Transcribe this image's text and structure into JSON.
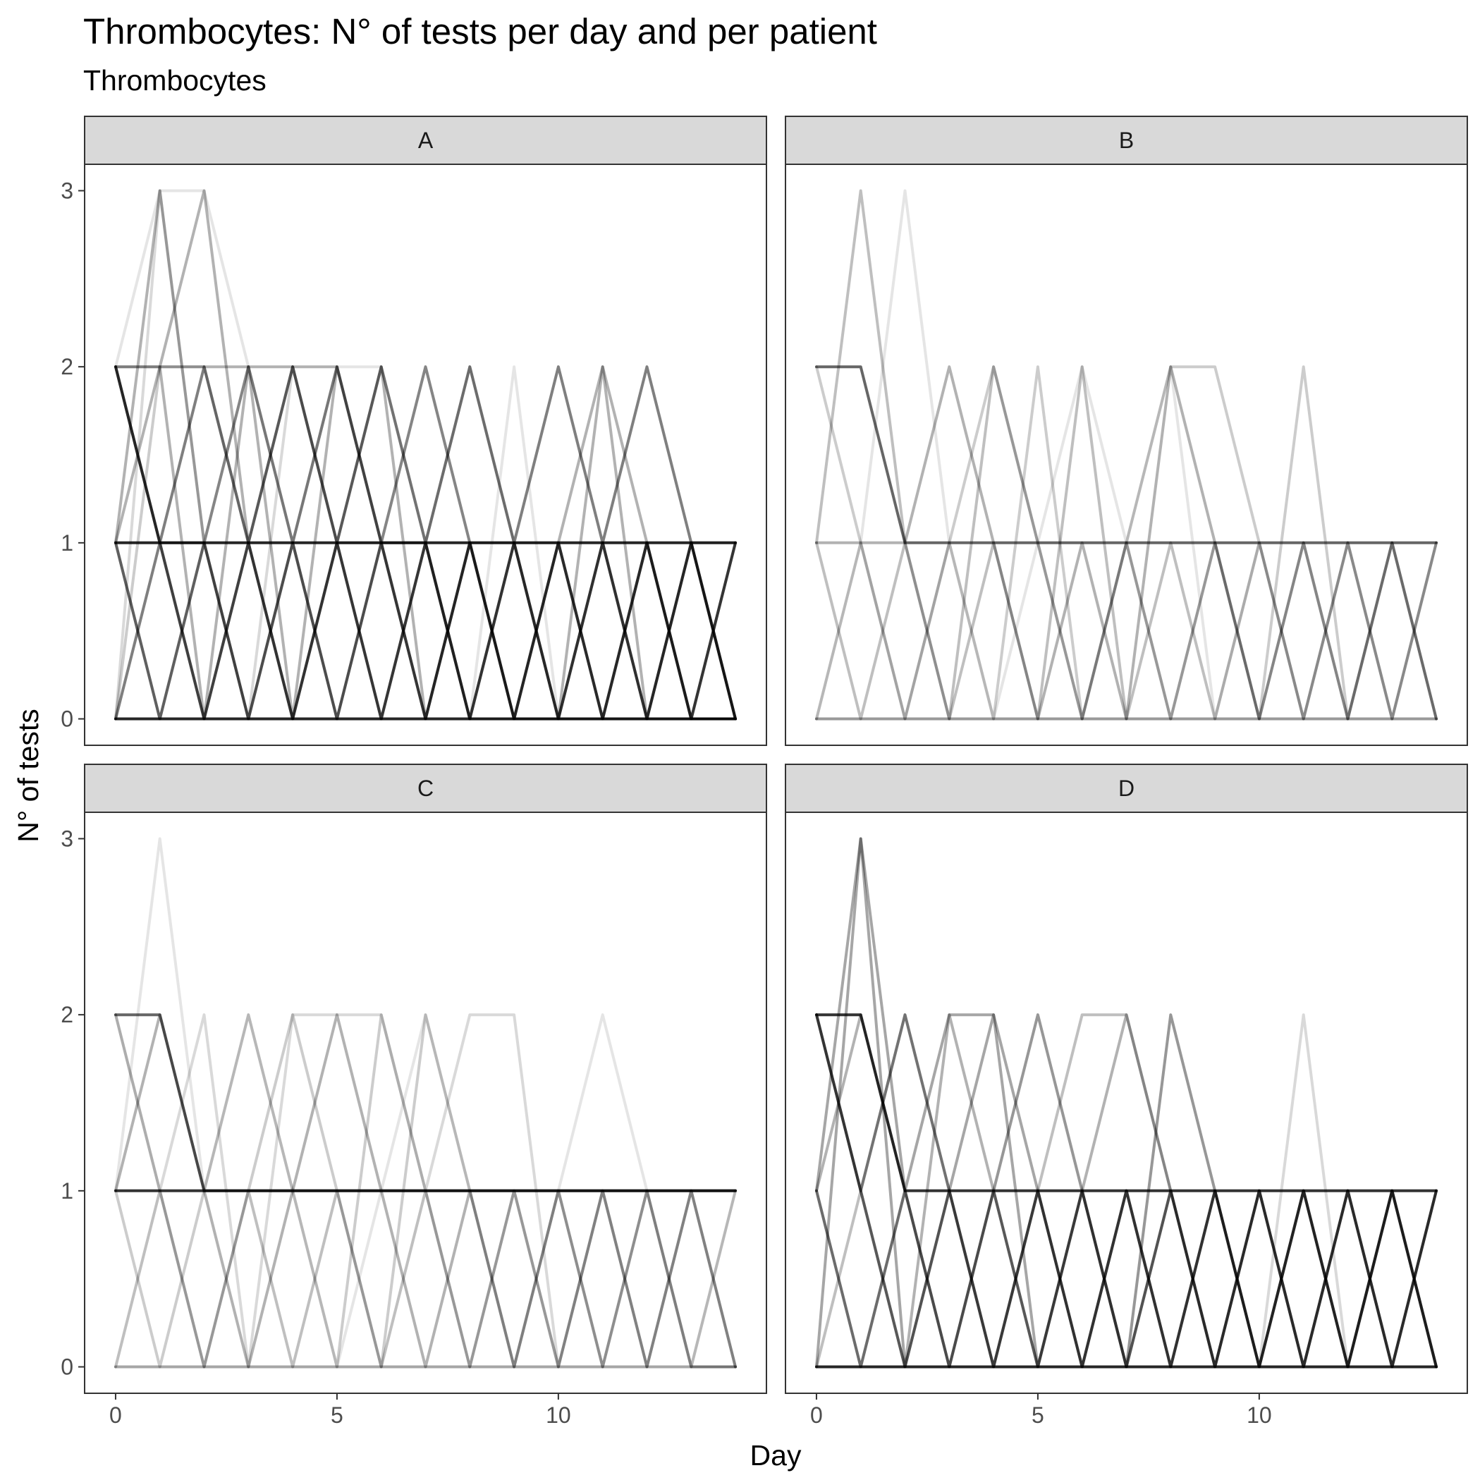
{
  "chart_data": {
    "type": "line",
    "title": "Thrombocytes: N° of tests per day and per patient",
    "subtitle": "Thrombocytes",
    "xlabel": "Day",
    "ylabel": "N° of tests",
    "xlim": [
      -0.7,
      14.7
    ],
    "ylim": [
      -0.15,
      3.15
    ],
    "xticks": [
      0,
      5,
      10
    ],
    "yticks": [
      0,
      1,
      2,
      3
    ],
    "grid": false,
    "facets": [
      {
        "label": "A",
        "series": [
          {
            "values": [
              2,
              1,
              2,
              1,
              2,
              1,
              2,
              1,
              2,
              1,
              2,
              1,
              2,
              1,
              0
            ],
            "opacity": 0.5
          },
          {
            "values": [
              2,
              2,
              2,
              2,
              2,
              2,
              1,
              1,
              0,
              0,
              0,
              0,
              0,
              0,
              0
            ],
            "opacity": 0.3
          },
          {
            "values": [
              1,
              1,
              1,
              1,
              1,
              1,
              1,
              1,
              1,
              1,
              1,
              1,
              1,
              1,
              1
            ],
            "opacity": 0.85
          },
          {
            "values": [
              0,
              0,
              0,
              0,
              0,
              0,
              0,
              0,
              0,
              0,
              0,
              0,
              0,
              0,
              0
            ],
            "opacity": 0.85
          },
          {
            "values": [
              2,
              1,
              0,
              1,
              0,
              1,
              0,
              1,
              0,
              1,
              0,
              1,
              0,
              1,
              0
            ],
            "opacity": 0.5
          },
          {
            "values": [
              1,
              0,
              1,
              0,
              1,
              0,
              1,
              0,
              1,
              0,
              1,
              0,
              1,
              0,
              1
            ],
            "opacity": 0.5
          },
          {
            "values": [
              0,
              1,
              0,
              1,
              0,
              1,
              0,
              1,
              0,
              1,
              0,
              1,
              0,
              1,
              0
            ],
            "opacity": 0.5
          },
          {
            "values": [
              1,
              3,
              1,
              2,
              1,
              2,
              1,
              2,
              1,
              0,
              1,
              0,
              1,
              0,
              1
            ],
            "opacity": 0.3
          },
          {
            "values": [
              1,
              2,
              3,
              1,
              2,
              1,
              2,
              0,
              1,
              0,
              1,
              2,
              1,
              0,
              0
            ],
            "opacity": 0.3
          },
          {
            "values": [
              0,
              3,
              1,
              0,
              2,
              1,
              0,
              1,
              2,
              1,
              0,
              1,
              0,
              1,
              1
            ],
            "opacity": 0.15
          },
          {
            "values": [
              2,
              1,
              1,
              0,
              1,
              0,
              1,
              0,
              1,
              0,
              1,
              0,
              1,
              0,
              1
            ],
            "opacity": 0.4
          },
          {
            "values": [
              2,
              3,
              3,
              2,
              1,
              2,
              2,
              1,
              0,
              2,
              0,
              1,
              0,
              0,
              0
            ],
            "opacity": 0.1
          },
          {
            "values": [
              1,
              0,
              1,
              2,
              1,
              2,
              1,
              2,
              1,
              1,
              0,
              0,
              1,
              0,
              0
            ],
            "opacity": 0.25
          },
          {
            "values": [
              2,
              2,
              0,
              2,
              0,
              2,
              1,
              0,
              1,
              0,
              0,
              2,
              0,
              1,
              0
            ],
            "opacity": 0.3
          },
          {
            "values": [
              0,
              2,
              2,
              1,
              0,
              1,
              1,
              1,
              0,
              1,
              1,
              0,
              0,
              0,
              0
            ],
            "opacity": 0.2
          }
        ]
      },
      {
        "label": "B",
        "series": [
          {
            "values": [
              2,
              2,
              1,
              1,
              1,
              1,
              1,
              1,
              1,
              1,
              1,
              1,
              1,
              1,
              1
            ],
            "opacity": 0.6
          },
          {
            "values": [
              0,
              0,
              0,
              0,
              0,
              0,
              0,
              0,
              0,
              0,
              0,
              0,
              0,
              0,
              0
            ],
            "opacity": 0.4
          },
          {
            "values": [
              1,
              3,
              1,
              0,
              2,
              1,
              0,
              1,
              0,
              1,
              0,
              1,
              0,
              1,
              0
            ],
            "opacity": 0.25
          },
          {
            "values": [
              0,
              1,
              3,
              1,
              0,
              1,
              2,
              1,
              2,
              0,
              1,
              0,
              1,
              0,
              1
            ],
            "opacity": 0.1
          },
          {
            "values": [
              1,
              1,
              1,
              2,
              1,
              0,
              1,
              0,
              2,
              1,
              0,
              1,
              0,
              1,
              0
            ],
            "opacity": 0.3
          },
          {
            "values": [
              0,
              1,
              0,
              1,
              2,
              1,
              0,
              1,
              2,
              2,
              1,
              0,
              1,
              0,
              1
            ],
            "opacity": 0.2
          },
          {
            "values": [
              2,
              1,
              0,
              1,
              0,
              2,
              0,
              1,
              0,
              1,
              0,
              2,
              0,
              1,
              0
            ],
            "opacity": 0.2
          },
          {
            "values": [
              1,
              0,
              1,
              0,
              1,
              0,
              2,
              0,
              1,
              0,
              1,
              0,
              1,
              0,
              1
            ],
            "opacity": 0.25
          }
        ]
      },
      {
        "label": "C",
        "series": [
          {
            "values": [
              2,
              2,
              1,
              1,
              1,
              1,
              1,
              1,
              1,
              1,
              1,
              1,
              1,
              1,
              1
            ],
            "opacity": 0.6
          },
          {
            "values": [
              1,
              2,
              1,
              0,
              1,
              2,
              1,
              0,
              1,
              0,
              1,
              0,
              1,
              0,
              0
            ],
            "opacity": 0.3
          },
          {
            "values": [
              1,
              1,
              1,
              1,
              1,
              1,
              1,
              1,
              1,
              1,
              1,
              1,
              1,
              1,
              1
            ],
            "opacity": 0.8
          },
          {
            "values": [
              0,
              0,
              0,
              0,
              0,
              0,
              0,
              0,
              0,
              0,
              0,
              0,
              0,
              0,
              0
            ],
            "opacity": 0.35
          },
          {
            "values": [
              1,
              3,
              1,
              2,
              1,
              0,
              1,
              2,
              1,
              0,
              1,
              2,
              1,
              0,
              1
            ],
            "opacity": 0.1
          },
          {
            "values": [
              2,
              1,
              2,
              0,
              2,
              2,
              2,
              1,
              2,
              2,
              0,
              1,
              0,
              1,
              0
            ],
            "opacity": 0.15
          },
          {
            "values": [
              0,
              1,
              0,
              1,
              0,
              1,
              0,
              1,
              0,
              1,
              0,
              1,
              0,
              1,
              0
            ],
            "opacity": 0.25
          },
          {
            "values": [
              1,
              0,
              1,
              2,
              1,
              0,
              2,
              1,
              0,
              1,
              0,
              1,
              0,
              1,
              0
            ],
            "opacity": 0.2
          },
          {
            "values": [
              2,
              1,
              0,
              1,
              2,
              1,
              0,
              2,
              1,
              0,
              1,
              0,
              1,
              0,
              1
            ],
            "opacity": 0.2
          }
        ]
      },
      {
        "label": "D",
        "series": [
          {
            "values": [
              2,
              2,
              1,
              1,
              1,
              1,
              1,
              1,
              1,
              1,
              1,
              1,
              1,
              1,
              1
            ],
            "opacity": 0.8
          },
          {
            "values": [
              0,
              0,
              0,
              0,
              0,
              0,
              0,
              0,
              0,
              0,
              0,
              0,
              0,
              0,
              0
            ],
            "opacity": 0.85
          },
          {
            "values": [
              2,
              1,
              0,
              1,
              0,
              1,
              0,
              1,
              0,
              1,
              0,
              1,
              0,
              1,
              0
            ],
            "opacity": 0.5
          },
          {
            "values": [
              1,
              0,
              1,
              0,
              1,
              0,
              1,
              0,
              1,
              0,
              1,
              0,
              1,
              0,
              1
            ],
            "opacity": 0.5
          },
          {
            "values": [
              0,
              3,
              1,
              2,
              2,
              1,
              0,
              1,
              0,
              1,
              0,
              1,
              0,
              1,
              0
            ],
            "opacity": 0.35
          },
          {
            "values": [
              1,
              3,
              0,
              1,
              2,
              0,
              1,
              0,
              1,
              0,
              1,
              0,
              1,
              0,
              1
            ],
            "opacity": 0.35
          },
          {
            "values": [
              1,
              2,
              1,
              0,
              1,
              2,
              1,
              0,
              2,
              1,
              0,
              1,
              0,
              1,
              0
            ],
            "opacity": 0.3
          },
          {
            "values": [
              0,
              1,
              2,
              1,
              0,
              1,
              2,
              2,
              1,
              0,
              1,
              0,
              1,
              0,
              1
            ],
            "opacity": 0.25
          },
          {
            "values": [
              2,
              1,
              0,
              2,
              1,
              0,
              1,
              2,
              1,
              0,
              1,
              0,
              1,
              0,
              1
            ],
            "opacity": 0.3
          },
          {
            "values": [
              1,
              0,
              1,
              0,
              1,
              2,
              1,
              0,
              2,
              1,
              0,
              2,
              0,
              1,
              0
            ],
            "opacity": 0.15
          },
          {
            "values": [
              2,
              1,
              2,
              1,
              0,
              1,
              0,
              1,
              0,
              1,
              0,
              1,
              0,
              1,
              0
            ],
            "opacity": 0.4
          }
        ]
      }
    ]
  },
  "colors": {
    "line": "#000000",
    "strip": "#d9d9d9",
    "border": "#333333",
    "tick_text": "#4d4d4d"
  }
}
